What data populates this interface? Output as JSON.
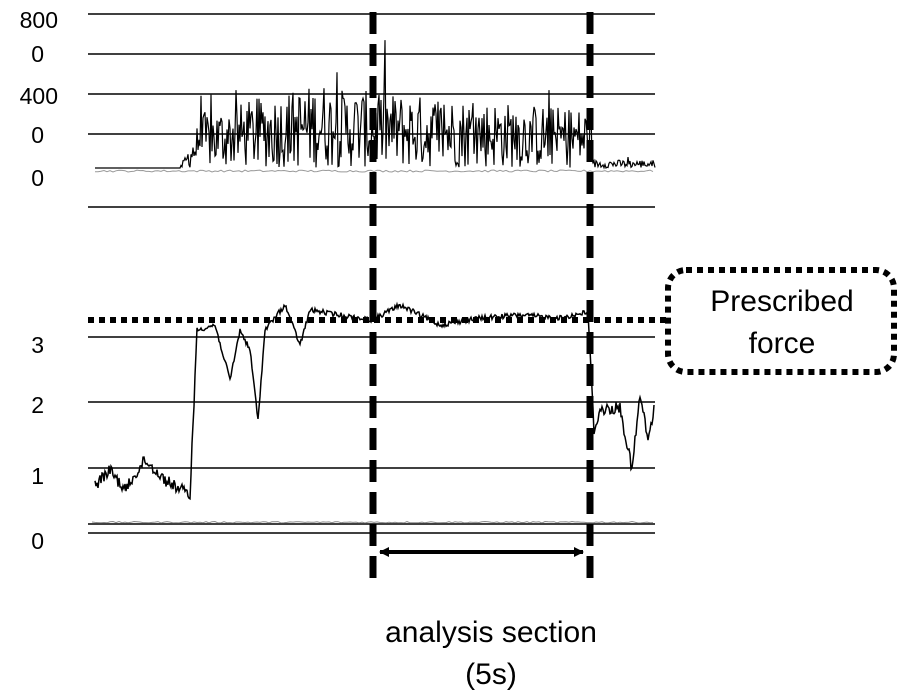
{
  "top_panel": {
    "tick_labels": [
      "800",
      "0",
      "400",
      "0",
      "0"
    ]
  },
  "bottom_panel": {
    "tick_labels": [
      "3",
      "2",
      "1",
      "0"
    ]
  },
  "annotations": {
    "prescribed_force": [
      "Prescribed",
      "force"
    ],
    "analysis_section": "analysis section",
    "duration": "(5s)"
  }
}
